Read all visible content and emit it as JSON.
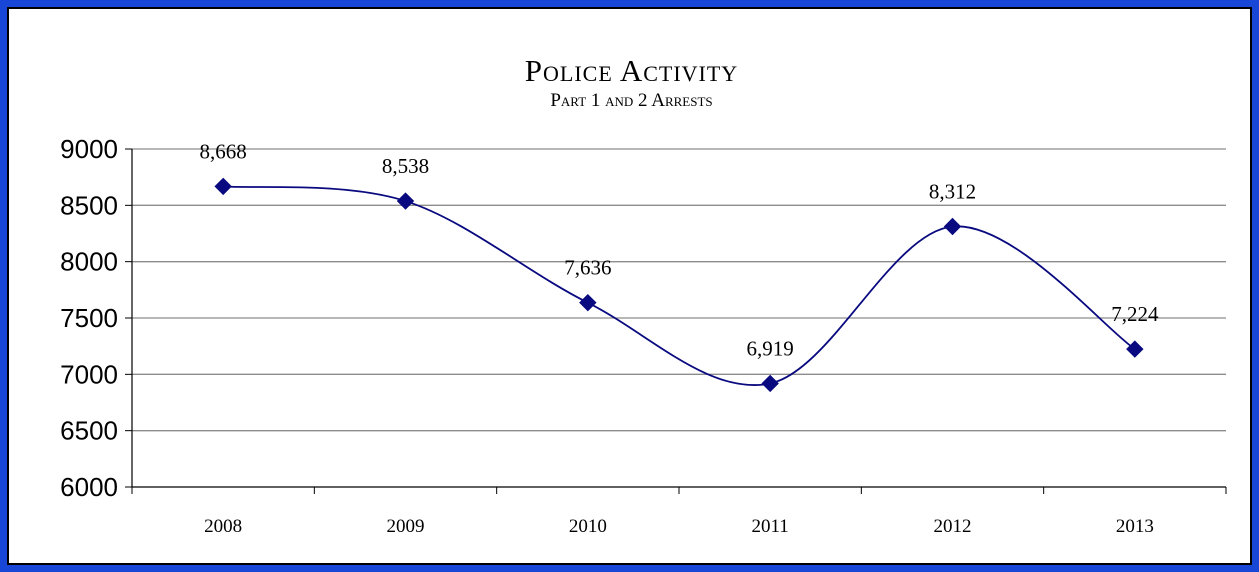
{
  "chart_data": {
    "type": "line",
    "title": "Police Activity",
    "subtitle": "Part 1 and 2 Arrests",
    "categories": [
      "2008",
      "2009",
      "2010",
      "2011",
      "2012",
      "2013"
    ],
    "values": [
      8668,
      8538,
      7636,
      6919,
      8312,
      7224
    ],
    "data_labels": [
      "8,668",
      "8,538",
      "7,636",
      "6,919",
      "8,312",
      "7,224"
    ],
    "y_ticks": [
      "9000",
      "8500",
      "8000",
      "7500",
      "7000",
      "6500",
      "6000"
    ],
    "ylim": [
      6000,
      9000
    ],
    "y_step": 500,
    "xlabel": "",
    "ylabel": "",
    "grid": true,
    "smooth": true,
    "marker": "diamond",
    "line_color": "#0a0a80",
    "grid_color": "#8c8c8c",
    "frame_color": "#1846d6"
  }
}
